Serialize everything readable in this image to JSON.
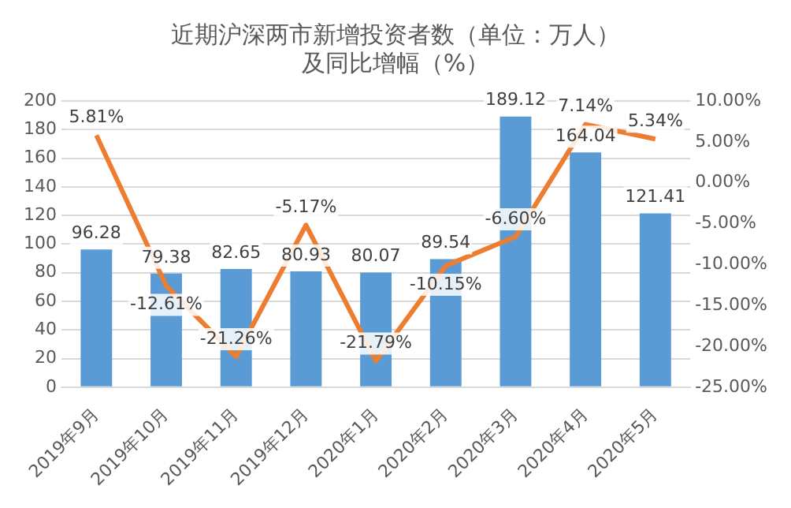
{
  "chart_data": {
    "type": "bar",
    "title": "近期沪深两市新增投资者数（单位：万人）",
    "subtitle": "及同比增幅（%）",
    "categories": [
      "2019年9月",
      "2019年10月",
      "2019年11月",
      "2019年12月",
      "2020年1月",
      "2020年2月",
      "2020年3月",
      "2020年4月",
      "2020年5月"
    ],
    "series": [
      {
        "color": "#5b9bd5",
        "values": [
          96.28,
          79.38,
          82.65,
          80.93,
          80.07,
          89.54,
          189.12,
          164.04,
          121.41
        ],
        "value_labels": [
          "96.28",
          "79.38",
          "82.65",
          "80.93",
          "80.07",
          "89.54",
          "189.12",
          "164.04",
          "121.41"
        ]
      },
      {
        "type": "line",
        "axis": "y2",
        "color": "#ed7d31",
        "marker": "none",
        "values": [
          5.81,
          -12.61,
          -21.26,
          -5.17,
          -21.79,
          -10.15,
          -6.6,
          7.14,
          5.34
        ],
        "value_labels": [
          "5.81%",
          "-12.61%",
          "-21.26%",
          "-5.17%",
          "-21.79%",
          "-10.15%",
          "-6.60%",
          "7.14%",
          "5.34%"
        ]
      }
    ],
    "ylim": [
      0,
      200
    ],
    "yticks": [
      0,
      20,
      40,
      60,
      80,
      100,
      120,
      140,
      160,
      180,
      200
    ],
    "y2lim": [
      -25,
      10
    ],
    "y2ticks": [
      {
        "value": -25,
        "label": "-25.00%"
      },
      {
        "value": -20,
        "label": "-20.00%"
      },
      {
        "value": -15,
        "label": "-15.00%"
      },
      {
        "value": -10,
        "label": "-10.00%"
      },
      {
        "value": -5,
        "label": "-5.00%"
      },
      {
        "value": 0,
        "label": "0.00%"
      },
      {
        "value": 5,
        "label": "5.00%"
      },
      {
        "value": 10,
        "label": "10.00%"
      }
    ],
    "grid": "y",
    "legend": false
  }
}
